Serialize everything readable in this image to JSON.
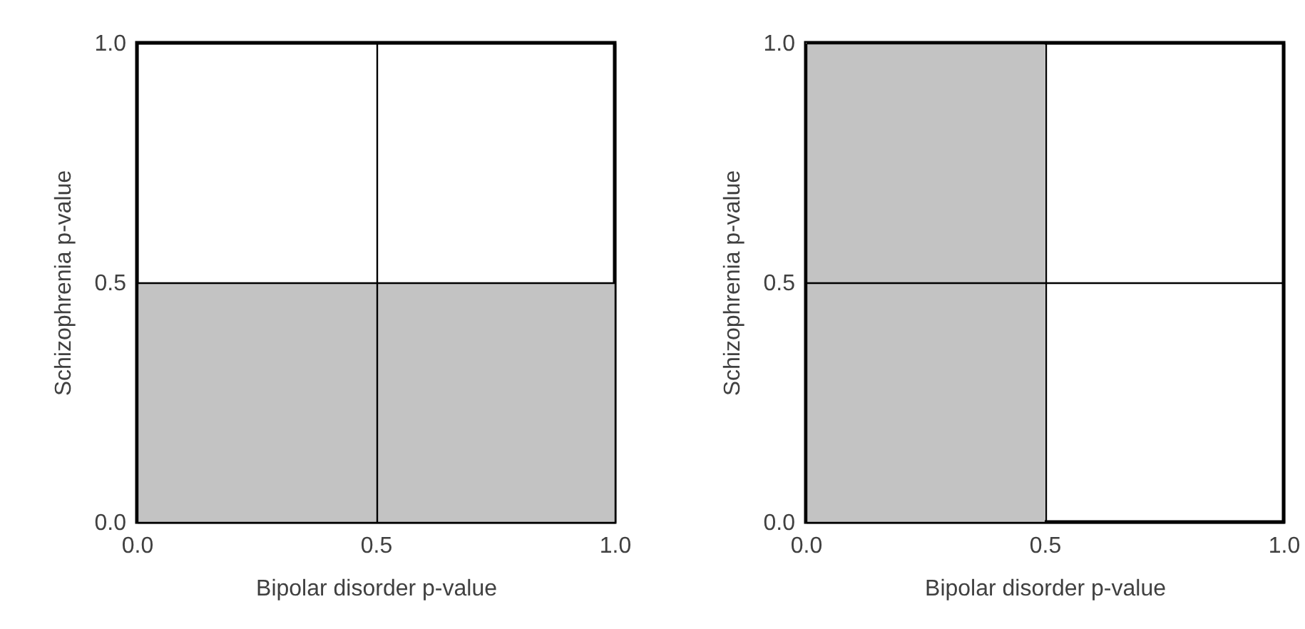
{
  "chart_data": [
    {
      "type": "scatter",
      "xlabel": "Bipolar disorder p-value",
      "ylabel": "Schizophrenia p-value",
      "xlim": [
        0,
        1
      ],
      "ylim": [
        0,
        1
      ],
      "xticks": [
        {
          "value": 0,
          "label": "0.0"
        },
        {
          "value": 0.5,
          "label": "0.5"
        },
        {
          "value": 1,
          "label": "1.0"
        }
      ],
      "yticks": [
        {
          "value": 0,
          "label": "0.0"
        },
        {
          "value": 0.5,
          "label": "0.5"
        },
        {
          "value": 1,
          "label": "1.0"
        }
      ],
      "grid": true,
      "bands": [
        {
          "axis": "y",
          "from": 0,
          "to": 0.5,
          "color": "#c3c3c3"
        }
      ]
    },
    {
      "type": "scatter",
      "xlabel": "Bipolar disorder p-value",
      "ylabel": "Schizophrenia p-value",
      "xlim": [
        0,
        1
      ],
      "ylim": [
        0,
        1
      ],
      "xticks": [
        {
          "value": 0,
          "label": "0.0"
        },
        {
          "value": 0.5,
          "label": "0.5"
        },
        {
          "value": 1,
          "label": "1.0"
        }
      ],
      "yticks": [
        {
          "value": 0,
          "label": "0.0"
        },
        {
          "value": 0.5,
          "label": "0.5"
        },
        {
          "value": 1,
          "label": "1.0"
        }
      ],
      "grid": true,
      "bands": [
        {
          "axis": "x",
          "from": 0,
          "to": 0.5,
          "color": "#c3c3c3"
        }
      ]
    }
  ]
}
